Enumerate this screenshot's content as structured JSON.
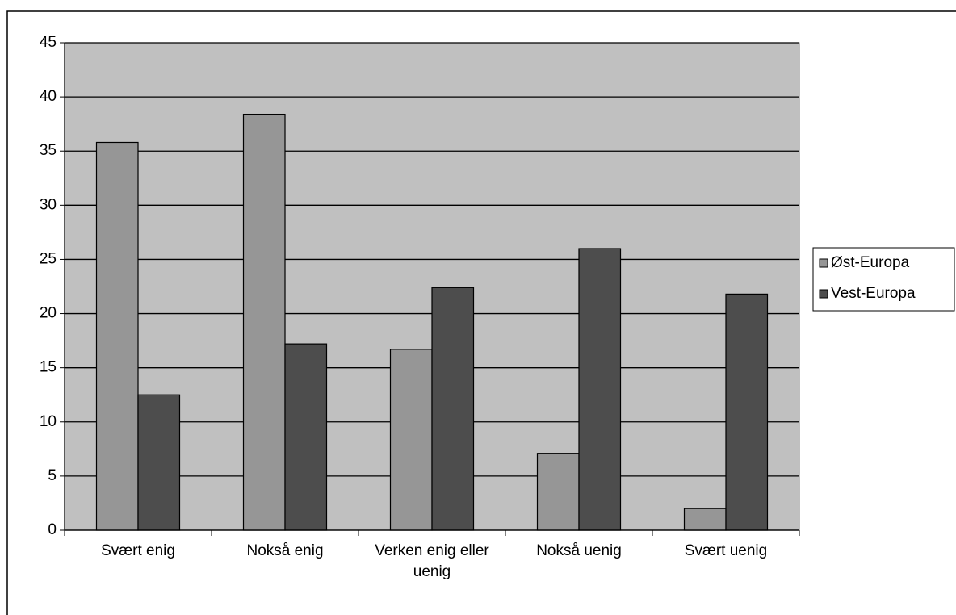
{
  "chart_data": {
    "type": "bar",
    "categories": [
      "Svært enig",
      "Nokså enig",
      "Verken enig eller uenig",
      "Nokså uenig",
      "Svært uenig"
    ],
    "series": [
      {
        "name": "Øst-Europa",
        "color": "#969696",
        "values": [
          35.8,
          38.4,
          16.7,
          7.1,
          2.0
        ]
      },
      {
        "name": "Vest-Europa",
        "color": "#4d4d4d",
        "values": [
          12.5,
          17.2,
          22.4,
          26.0,
          21.8
        ]
      }
    ],
    "ylim": [
      0,
      45
    ],
    "yticks": [
      0,
      5,
      10,
      15,
      20,
      25,
      30,
      35,
      40,
      45
    ],
    "grid": true,
    "legend": "right",
    "plot_background": "#c0c0c0"
  }
}
